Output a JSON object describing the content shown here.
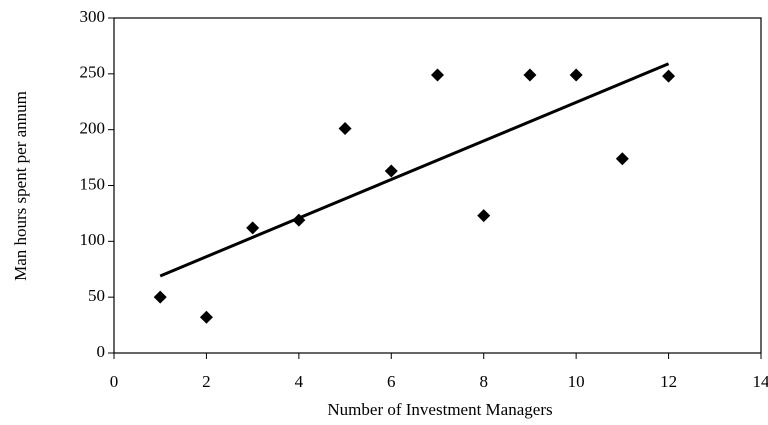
{
  "chart_data": {
    "type": "scatter",
    "xlabel": "Number of Investment Managers",
    "ylabel": "Man hours spent per annum",
    "x": [
      1,
      2,
      3,
      4,
      5,
      6,
      7,
      8,
      9,
      10,
      11,
      12
    ],
    "values": [
      50,
      32,
      112,
      119,
      201,
      163,
      249,
      123,
      249,
      249,
      174,
      248
    ],
    "color": "#000000",
    "trendline": {
      "x": [
        1,
        12
      ],
      "values": [
        69,
        259
      ],
      "color": "#000000"
    },
    "xlim": [
      0,
      14
    ],
    "xticks": [
      0,
      2,
      4,
      6,
      8,
      10,
      12,
      14
    ],
    "ylim": [
      0,
      300
    ],
    "yticks": [
      0,
      50,
      100,
      150,
      200,
      250,
      300
    ]
  }
}
